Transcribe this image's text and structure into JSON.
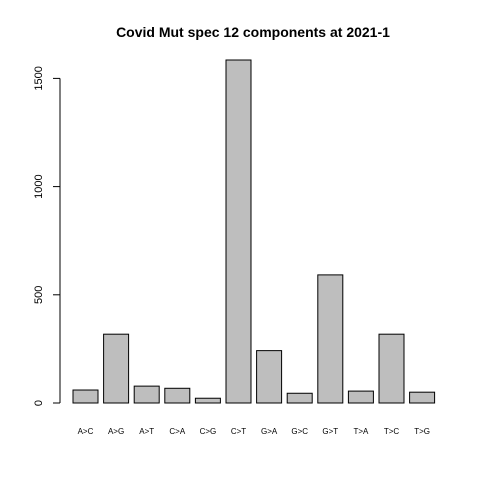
{
  "chart_data": {
    "type": "bar",
    "title": "Covid Mut spec 12 components at 2021-1",
    "xlabel": "",
    "ylabel": "",
    "categories": [
      "A>C",
      "A>G",
      "A>T",
      "C>A",
      "C>G",
      "C>T",
      "G>A",
      "G>C",
      "G>T",
      "T>A",
      "T>C",
      "T>G"
    ],
    "values": [
      60,
      318,
      78,
      68,
      22,
      1585,
      242,
      45,
      592,
      55,
      318,
      50
    ],
    "ylim": [
      0,
      1585
    ],
    "yticks": [
      0,
      500,
      1000,
      1500
    ],
    "grid": false,
    "bar_color": "#bebebe",
    "edge_color": "#000000"
  }
}
